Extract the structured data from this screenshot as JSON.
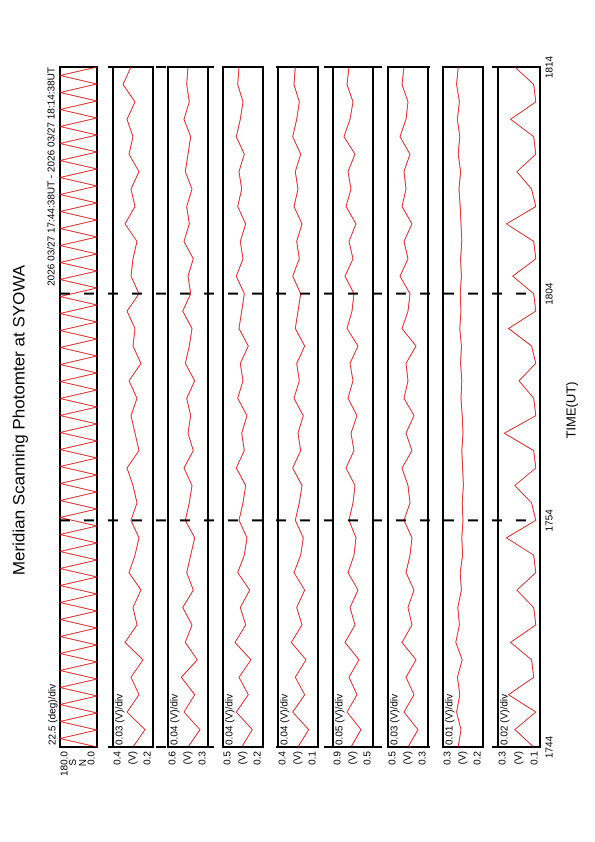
{
  "page": {
    "title": "Meridian Scanning Photomter at SYOWA",
    "subtitle": "2026 03/27 17:44:38UT - 2026 03/27 18:14:38UT"
  },
  "chart_data": [
    {
      "type": "scan",
      "annotation": "22.5 (deg)/div",
      "ylim": [
        0,
        180
      ],
      "yticks": [
        {
          "value": 0,
          "label": "0.0"
        },
        {
          "value": 180,
          "label": "180.0"
        }
      ],
      "mid_labels": [
        "S",
        "N"
      ],
      "xlim": [
        1064,
        1094
      ],
      "series": [
        {
          "color": "#e00000",
          "values": [
            0,
            180,
            0,
            180,
            0,
            180,
            0,
            180,
            0,
            180,
            0,
            180,
            0,
            180,
            0,
            180,
            0,
            180,
            0,
            180,
            0,
            180,
            0,
            180,
            0,
            180,
            0,
            180,
            0,
            180,
            0,
            180,
            0,
            180,
            0,
            180,
            0,
            180,
            0,
            180,
            0,
            180,
            0,
            180,
            0,
            180,
            0,
            180,
            0,
            180,
            0,
            180,
            0,
            180,
            0,
            180,
            0,
            180,
            0,
            180,
            0,
            180,
            0,
            180,
            0,
            180,
            0,
            180,
            0,
            180,
            0,
            180,
            0,
            180,
            0,
            180,
            0,
            180,
            0,
            180,
            0
          ]
        }
      ]
    },
    {
      "type": "line",
      "annotation": "0.03 (V)/div",
      "ylim": [
        0.2,
        0.4
      ],
      "yticks": [
        0.2,
        0.4
      ],
      "unit": "(V)",
      "xlim": [
        1064,
        1094
      ],
      "series": [
        {
          "color": "#e00000",
          "values": [
            0.3,
            0.24,
            0.33,
            0.27,
            0.31,
            0.25,
            0.34,
            0.28,
            0.3,
            0.26,
            0.32,
            0.29,
            0.27,
            0.31,
            0.28,
            0.3,
            0.33,
            0.27,
            0.29,
            0.31,
            0.28,
            0.32,
            0.26,
            0.3,
            0.29,
            0.33,
            0.27,
            0.31,
            0.3,
            0.28,
            0.34,
            0.29,
            0.31,
            0.27,
            0.32,
            0.3,
            0.33,
            0.29,
            0.35,
            0.31
          ]
        }
      ]
    },
    {
      "type": "line",
      "annotation": "0.04 (V)/div",
      "ylim": [
        0.3,
        0.6
      ],
      "yticks": [
        0.3,
        0.6
      ],
      "unit": "(V)",
      "xlim": [
        1064,
        1094
      ],
      "series": [
        {
          "color": "#e00000",
          "values": [
            0.45,
            0.36,
            0.48,
            0.4,
            0.5,
            0.38,
            0.47,
            0.42,
            0.49,
            0.41,
            0.46,
            0.43,
            0.4,
            0.47,
            0.44,
            0.42,
            0.48,
            0.41,
            0.45,
            0.43,
            0.46,
            0.4,
            0.47,
            0.44,
            0.42,
            0.49,
            0.43,
            0.45,
            0.41,
            0.48,
            0.44,
            0.46,
            0.42,
            0.47,
            0.45,
            0.43,
            0.48,
            0.44,
            0.46,
            0.45
          ]
        }
      ]
    },
    {
      "type": "line",
      "annotation": "0.04 (V)/div",
      "ylim": [
        0.2,
        0.5
      ],
      "yticks": [
        0.2,
        0.5
      ],
      "unit": "(V)",
      "xlim": [
        1064,
        1094
      ],
      "series": [
        {
          "color": "#e00000",
          "values": [
            0.36,
            0.28,
            0.4,
            0.31,
            0.38,
            0.29,
            0.41,
            0.33,
            0.37,
            0.3,
            0.39,
            0.34,
            0.32,
            0.38,
            0.35,
            0.33,
            0.4,
            0.34,
            0.36,
            0.32,
            0.39,
            0.35,
            0.37,
            0.31,
            0.38,
            0.36,
            0.34,
            0.4,
            0.35,
            0.37,
            0.33,
            0.39,
            0.36,
            0.38,
            0.34,
            0.4,
            0.37,
            0.35,
            0.39,
            0.38
          ]
        }
      ]
    },
    {
      "type": "line",
      "annotation": "0.04 (V)/div",
      "ylim": [
        0.1,
        0.4
      ],
      "yticks": [
        0.1,
        0.4
      ],
      "unit": "(V)",
      "xlim": [
        1064,
        1094
      ],
      "series": [
        {
          "color": "#e00000",
          "values": [
            0.25,
            0.17,
            0.29,
            0.2,
            0.27,
            0.19,
            0.3,
            0.22,
            0.26,
            0.2,
            0.28,
            0.23,
            0.21,
            0.27,
            0.24,
            0.22,
            0.29,
            0.23,
            0.25,
            0.21,
            0.28,
            0.24,
            0.26,
            0.2,
            0.27,
            0.25,
            0.23,
            0.29,
            0.24,
            0.26,
            0.22,
            0.28,
            0.25,
            0.27,
            0.23,
            0.29,
            0.26,
            0.24,
            0.28,
            0.27
          ]
        }
      ]
    },
    {
      "type": "line",
      "annotation": "0.05 (V)/div",
      "ylim": [
        0.5,
        0.9
      ],
      "yticks": [
        0.5,
        0.9
      ],
      "unit": "(V)",
      "xlim": [
        1064,
        1094
      ],
      "series": [
        {
          "color": "#e00000",
          "values": [
            0.72,
            0.62,
            0.76,
            0.66,
            0.74,
            0.64,
            0.78,
            0.68,
            0.73,
            0.65,
            0.75,
            0.69,
            0.67,
            0.74,
            0.7,
            0.68,
            0.77,
            0.69,
            0.72,
            0.66,
            0.75,
            0.7,
            0.73,
            0.65,
            0.76,
            0.71,
            0.69,
            0.78,
            0.7,
            0.74,
            0.67,
            0.77,
            0.72,
            0.75,
            0.68,
            0.79,
            0.73,
            0.7,
            0.76,
            0.74
          ]
        }
      ]
    },
    {
      "type": "line",
      "annotation": "0.03 (V)/div",
      "ylim": [
        0.3,
        0.5
      ],
      "yticks": [
        0.3,
        0.5
      ],
      "unit": "(V)",
      "xlim": [
        1064,
        1094
      ],
      "series": [
        {
          "color": "#e00000",
          "values": [
            0.4,
            0.35,
            0.42,
            0.37,
            0.41,
            0.36,
            0.43,
            0.38,
            0.4,
            0.37,
            0.41,
            0.39,
            0.38,
            0.42,
            0.39,
            0.4,
            0.43,
            0.38,
            0.41,
            0.37,
            0.42,
            0.4,
            0.41,
            0.36,
            0.43,
            0.4,
            0.39,
            0.44,
            0.4,
            0.42,
            0.38,
            0.43,
            0.41,
            0.42,
            0.39,
            0.44,
            0.41,
            0.4,
            0.43,
            0.42
          ]
        }
      ]
    },
    {
      "type": "line",
      "annotation": "0.01 (V)/div",
      "ylim": [
        0.2,
        0.3
      ],
      "yticks": [
        0.2,
        0.3
      ],
      "unit": "(V)",
      "xlim": [
        1064,
        1094
      ],
      "series": [
        {
          "color": "#e00000",
          "values": [
            0.262,
            0.255,
            0.266,
            0.258,
            0.264,
            0.252,
            0.268,
            0.259,
            0.263,
            0.254,
            0.257,
            0.251,
            0.253,
            0.25,
            0.252,
            0.249,
            0.251,
            0.253,
            0.25,
            0.252,
            0.255,
            0.253,
            0.256,
            0.254,
            0.258,
            0.255,
            0.257,
            0.254,
            0.256,
            0.253,
            0.255,
            0.257,
            0.26,
            0.256,
            0.262,
            0.258,
            0.264,
            0.259,
            0.266,
            0.262
          ]
        }
      ]
    },
    {
      "type": "line",
      "annotation": "0.02 (V)/div",
      "ylim": [
        0.1,
        0.3
      ],
      "yticks": [
        0.1,
        0.3
      ],
      "unit": "(V)",
      "xlim": [
        1064,
        1094
      ],
      "xticks": [
        {
          "value": 1064,
          "label": "1744"
        },
        {
          "value": 1074,
          "label": "1754"
        },
        {
          "value": 1084,
          "label": "1804"
        },
        {
          "value": 1094,
          "label": "1814"
        }
      ],
      "xlabel": "TIME(UT)",
      "series": [
        {
          "color": "#e00000",
          "values": [
            0.13,
            0.22,
            0.12,
            0.25,
            0.13,
            0.14,
            0.24,
            0.12,
            0.13,
            0.21,
            0.12,
            0.13,
            0.26,
            0.12,
            0.14,
            0.22,
            0.12,
            0.13,
            0.27,
            0.12,
            0.13,
            0.2,
            0.12,
            0.14,
            0.25,
            0.12,
            0.13,
            0.23,
            0.12,
            0.13,
            0.26,
            0.12,
            0.14,
            0.21,
            0.12,
            0.13,
            0.24,
            0.12,
            0.13,
            0.22
          ]
        }
      ]
    }
  ]
}
